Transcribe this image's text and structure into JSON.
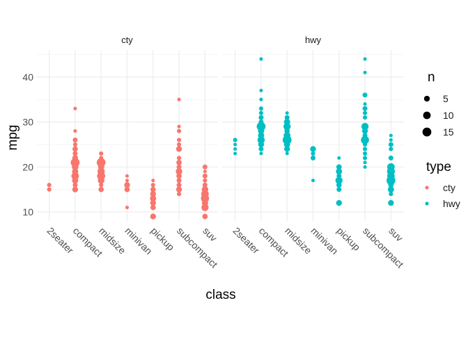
{
  "chart_data": {
    "type": "scatter",
    "xlabel": "class",
    "ylabel": "mpg",
    "ylim": [
      8,
      46
    ],
    "yticks": [
      10,
      20,
      30,
      40
    ],
    "grid": true,
    "legend_position": "right",
    "categories": [
      "2seater",
      "compact",
      "midsize",
      "minivan",
      "pickup",
      "subcompact",
      "suv"
    ],
    "facets": [
      {
        "label": "cty"
      },
      {
        "label": "hwy"
      }
    ],
    "legend": {
      "size_title": "n",
      "size_entries": [
        {
          "label": "5",
          "n": 5
        },
        {
          "label": "10",
          "n": 10
        },
        {
          "label": "15",
          "n": 15
        }
      ],
      "type_title": "type",
      "type_entries": [
        {
          "label": "cty",
          "color": "#F8766D"
        },
        {
          "label": "hwy",
          "color": "#00BFC4"
        }
      ]
    },
    "series": [
      {
        "name": "cty",
        "color": "#F8766D",
        "points": [
          [
            "2seater",
            15,
            2
          ],
          [
            "2seater",
            16,
            2
          ],
          [
            "compact",
            15,
            5
          ],
          [
            "compact",
            16,
            3
          ],
          [
            "compact",
            17,
            6
          ],
          [
            "compact",
            18,
            10
          ],
          [
            "compact",
            19,
            6
          ],
          [
            "compact",
            20,
            7
          ],
          [
            "compact",
            21,
            15
          ],
          [
            "compact",
            22,
            5
          ],
          [
            "compact",
            23,
            3
          ],
          [
            "compact",
            24,
            4
          ],
          [
            "compact",
            25,
            2
          ],
          [
            "compact",
            26,
            3
          ],
          [
            "compact",
            28,
            1
          ],
          [
            "compact",
            33,
            1
          ],
          [
            "midsize",
            15,
            4
          ],
          [
            "midsize",
            16,
            2
          ],
          [
            "midsize",
            17,
            7
          ],
          [
            "midsize",
            18,
            12
          ],
          [
            "midsize",
            19,
            9
          ],
          [
            "midsize",
            20,
            6
          ],
          [
            "midsize",
            21,
            15
          ],
          [
            "midsize",
            22,
            2
          ],
          [
            "midsize",
            23,
            2
          ],
          [
            "minivan",
            11,
            1
          ],
          [
            "minivan",
            15,
            4
          ],
          [
            "minivan",
            16,
            5
          ],
          [
            "minivan",
            17,
            1
          ],
          [
            "minivan",
            18,
            1
          ],
          [
            "pickup",
            9,
            5
          ],
          [
            "pickup",
            11,
            4
          ],
          [
            "pickup",
            12,
            5
          ],
          [
            "pickup",
            13,
            6
          ],
          [
            "pickup",
            14,
            5
          ],
          [
            "pickup",
            15,
            4
          ],
          [
            "pickup",
            16,
            2
          ],
          [
            "pickup",
            17,
            1
          ],
          [
            "subcompact",
            14,
            2
          ],
          [
            "subcompact",
            15,
            5
          ],
          [
            "subcompact",
            16,
            3
          ],
          [
            "subcompact",
            17,
            3
          ],
          [
            "subcompact",
            18,
            4
          ],
          [
            "subcompact",
            19,
            7
          ],
          [
            "subcompact",
            20,
            3
          ],
          [
            "subcompact",
            21,
            4
          ],
          [
            "subcompact",
            22,
            2
          ],
          [
            "subcompact",
            24,
            5
          ],
          [
            "subcompact",
            25,
            2
          ],
          [
            "subcompact",
            26,
            2
          ],
          [
            "subcompact",
            28,
            2
          ],
          [
            "subcompact",
            29,
            1
          ],
          [
            "subcompact",
            35,
            1
          ],
          [
            "suv",
            9,
            4
          ],
          [
            "suv",
            11,
            9
          ],
          [
            "suv",
            12,
            6
          ],
          [
            "suv",
            13,
            12
          ],
          [
            "suv",
            14,
            10
          ],
          [
            "suv",
            15,
            7
          ],
          [
            "suv",
            16,
            3
          ],
          [
            "suv",
            17,
            2
          ],
          [
            "suv",
            18,
            3
          ],
          [
            "suv",
            19,
            1
          ],
          [
            "suv",
            20,
            3
          ]
        ]
      },
      {
        "name": "hwy",
        "color": "#00BFC4",
        "points": [
          [
            "2seater",
            23,
            1
          ],
          [
            "2seater",
            24,
            1
          ],
          [
            "2seater",
            25,
            1
          ],
          [
            "2seater",
            26,
            2
          ],
          [
            "compact",
            23,
            1
          ],
          [
            "compact",
            24,
            3
          ],
          [
            "compact",
            25,
            5
          ],
          [
            "compact",
            26,
            9
          ],
          [
            "compact",
            27,
            6
          ],
          [
            "compact",
            28,
            6
          ],
          [
            "compact",
            29,
            15
          ],
          [
            "compact",
            30,
            3
          ],
          [
            "compact",
            31,
            3
          ],
          [
            "compact",
            32,
            2
          ],
          [
            "compact",
            33,
            2
          ],
          [
            "compact",
            35,
            1
          ],
          [
            "compact",
            37,
            1
          ],
          [
            "compact",
            44,
            1
          ],
          [
            "midsize",
            23,
            1
          ],
          [
            "midsize",
            24,
            5
          ],
          [
            "midsize",
            25,
            6
          ],
          [
            "midsize",
            26,
            15
          ],
          [
            "midsize",
            27,
            8
          ],
          [
            "midsize",
            28,
            4
          ],
          [
            "midsize",
            29,
            9
          ],
          [
            "midsize",
            30,
            6
          ],
          [
            "midsize",
            31,
            3
          ],
          [
            "midsize",
            32,
            1
          ],
          [
            "minivan",
            17,
            1
          ],
          [
            "minivan",
            22,
            3
          ],
          [
            "minivan",
            23,
            2
          ],
          [
            "minivan",
            24,
            5
          ],
          [
            "pickup",
            12,
            5
          ],
          [
            "pickup",
            15,
            3
          ],
          [
            "pickup",
            16,
            4
          ],
          [
            "pickup",
            17,
            9
          ],
          [
            "pickup",
            18,
            3
          ],
          [
            "pickup",
            19,
            6
          ],
          [
            "pickup",
            20,
            4
          ],
          [
            "pickup",
            22,
            1
          ],
          [
            "subcompact",
            20,
            1
          ],
          [
            "subcompact",
            21,
            1
          ],
          [
            "subcompact",
            22,
            2
          ],
          [
            "subcompact",
            23,
            2
          ],
          [
            "subcompact",
            24,
            2
          ],
          [
            "subcompact",
            25,
            2
          ],
          [
            "subcompact",
            26,
            12
          ],
          [
            "subcompact",
            27,
            3
          ],
          [
            "subcompact",
            28,
            5
          ],
          [
            "subcompact",
            29,
            9
          ],
          [
            "subcompact",
            31,
            2
          ],
          [
            "subcompact",
            32,
            2
          ],
          [
            "subcompact",
            33,
            3
          ],
          [
            "subcompact",
            34,
            1
          ],
          [
            "subcompact",
            36,
            3
          ],
          [
            "subcompact",
            41,
            1
          ],
          [
            "subcompact",
            44,
            1
          ],
          [
            "suv",
            12,
            5
          ],
          [
            "suv",
            14,
            2
          ],
          [
            "suv",
            15,
            6
          ],
          [
            "suv",
            16,
            4
          ],
          [
            "suv",
            17,
            15
          ],
          [
            "suv",
            18,
            10
          ],
          [
            "suv",
            19,
            11
          ],
          [
            "suv",
            20,
            10
          ],
          [
            "suv",
            22,
            3
          ],
          [
            "suv",
            24,
            2
          ],
          [
            "suv",
            25,
            3
          ],
          [
            "suv",
            26,
            1
          ],
          [
            "suv",
            27,
            1
          ]
        ]
      }
    ]
  }
}
